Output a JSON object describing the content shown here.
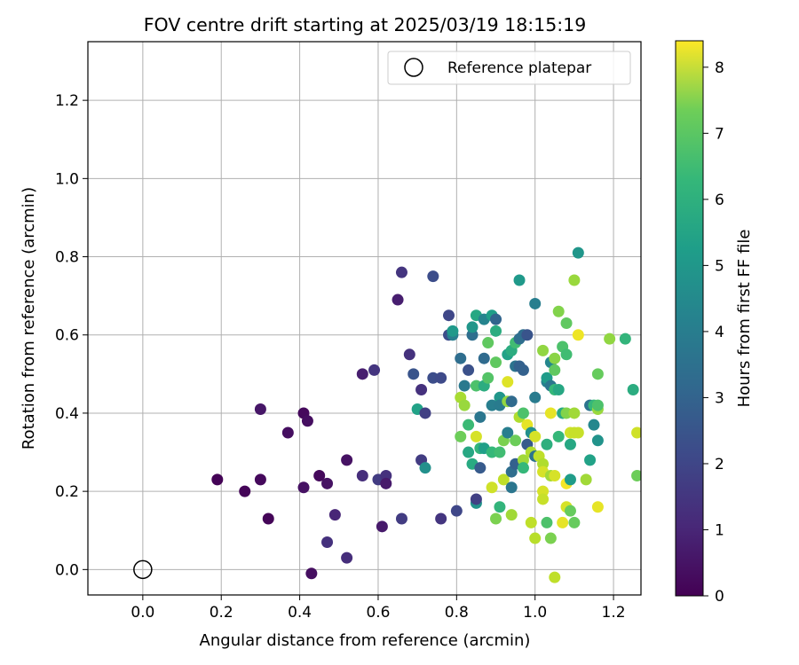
{
  "chart_data": {
    "type": "scatter",
    "title": "FOV centre drift starting at 2025/03/19 18:15:19",
    "xlabel": "Angular distance from reference (arcmin)",
    "ylabel": "Rotation from reference (arcmin)",
    "xlim": [
      -0.14,
      1.27
    ],
    "ylim": [
      -0.065,
      1.35
    ],
    "xticks": [
      "0.0",
      "0.2",
      "0.4",
      "0.6",
      "0.8",
      "1.0",
      "1.2"
    ],
    "xtick_values": [
      0.0,
      0.2,
      0.4,
      0.6,
      0.8,
      1.0,
      1.2
    ],
    "yticks": [
      "0.0",
      "0.2",
      "0.4",
      "0.6",
      "0.8",
      "1.0",
      "1.2"
    ],
    "ytick_values": [
      0.0,
      0.2,
      0.4,
      0.6,
      0.8,
      1.0,
      1.2
    ],
    "grid": true,
    "legend": {
      "position": "top-right",
      "entries": [
        "Reference platepar"
      ]
    },
    "reference_point": {
      "x": 0.0,
      "y": 0.0
    },
    "colorbar": {
      "label": "Hours from first FF file",
      "colormap": "viridis",
      "range": [
        0,
        8.4
      ],
      "ticks": [
        "0",
        "1",
        "2",
        "3",
        "4",
        "5",
        "6",
        "7",
        "8"
      ],
      "tick_values": [
        0,
        1,
        2,
        3,
        4,
        5,
        6,
        7,
        8
      ]
    },
    "points": [
      {
        "x": 0.19,
        "y": 0.23,
        "h": 0.05
      },
      {
        "x": 0.26,
        "y": 0.2,
        "h": 0.1
      },
      {
        "x": 0.3,
        "y": 0.23,
        "h": 0.2
      },
      {
        "x": 0.3,
        "y": 0.41,
        "h": 0.5
      },
      {
        "x": 0.32,
        "y": 0.13,
        "h": 0.1
      },
      {
        "x": 0.37,
        "y": 0.35,
        "h": 0.3
      },
      {
        "x": 0.41,
        "y": 0.4,
        "h": 0.2
      },
      {
        "x": 0.41,
        "y": 0.21,
        "h": 0.4
      },
      {
        "x": 0.42,
        "y": 0.38,
        "h": 0.3
      },
      {
        "x": 0.43,
        "y": -0.01,
        "h": 0.3
      },
      {
        "x": 0.45,
        "y": 0.24,
        "h": 0.2
      },
      {
        "x": 0.47,
        "y": 0.22,
        "h": 0.4
      },
      {
        "x": 0.47,
        "y": 0.07,
        "h": 1.2
      },
      {
        "x": 0.49,
        "y": 0.14,
        "h": 0.9
      },
      {
        "x": 0.52,
        "y": 0.28,
        "h": 0.4
      },
      {
        "x": 0.52,
        "y": 0.03,
        "h": 1.1
      },
      {
        "x": 0.56,
        "y": 0.5,
        "h": 0.7
      },
      {
        "x": 0.56,
        "y": 0.24,
        "h": 1.1
      },
      {
        "x": 0.59,
        "y": 0.51,
        "h": 1.3
      },
      {
        "x": 0.6,
        "y": 0.23,
        "h": 1.5
      },
      {
        "x": 0.61,
        "y": 0.11,
        "h": 0.6
      },
      {
        "x": 0.62,
        "y": 0.24,
        "h": 1.2
      },
      {
        "x": 0.62,
        "y": 0.22,
        "h": 0.6
      },
      {
        "x": 0.65,
        "y": 0.69,
        "h": 0.7
      },
      {
        "x": 0.66,
        "y": 0.76,
        "h": 1.3
      },
      {
        "x": 0.66,
        "y": 0.13,
        "h": 1.5
      },
      {
        "x": 0.68,
        "y": 0.55,
        "h": 1.2
      },
      {
        "x": 0.69,
        "y": 0.5,
        "h": 2.2
      },
      {
        "x": 0.71,
        "y": 0.46,
        "h": 1.2
      },
      {
        "x": 0.71,
        "y": 0.28,
        "h": 1.5
      },
      {
        "x": 0.7,
        "y": 0.41,
        "h": 4.8
      },
      {
        "x": 0.72,
        "y": 0.4,
        "h": 1.6
      },
      {
        "x": 0.72,
        "y": 0.26,
        "h": 4.2
      },
      {
        "x": 0.74,
        "y": 0.75,
        "h": 2.0
      },
      {
        "x": 0.74,
        "y": 0.49,
        "h": 2.0
      },
      {
        "x": 0.76,
        "y": 0.49,
        "h": 1.9
      },
      {
        "x": 0.76,
        "y": 0.13,
        "h": 1.3
      },
      {
        "x": 0.78,
        "y": 0.65,
        "h": 1.8
      },
      {
        "x": 0.78,
        "y": 0.6,
        "h": 2.0
      },
      {
        "x": 0.79,
        "y": 0.6,
        "h": 3.6
      },
      {
        "x": 0.79,
        "y": 0.61,
        "h": 4.5
      },
      {
        "x": 0.8,
        "y": 0.15,
        "h": 1.8
      },
      {
        "x": 0.81,
        "y": 0.44,
        "h": 7.3
      },
      {
        "x": 0.81,
        "y": 0.34,
        "h": 6.5
      },
      {
        "x": 0.81,
        "y": 0.54,
        "h": 3.0
      },
      {
        "x": 0.82,
        "y": 0.42,
        "h": 7.1
      },
      {
        "x": 0.82,
        "y": 0.47,
        "h": 3.4
      },
      {
        "x": 0.83,
        "y": 0.51,
        "h": 2.1
      },
      {
        "x": 0.83,
        "y": 0.37,
        "h": 5.7
      },
      {
        "x": 0.83,
        "y": 0.3,
        "h": 5.0
      },
      {
        "x": 0.84,
        "y": 0.6,
        "h": 3.0
      },
      {
        "x": 0.84,
        "y": 0.62,
        "h": 4.4
      },
      {
        "x": 0.84,
        "y": 0.27,
        "h": 5.1
      },
      {
        "x": 0.85,
        "y": 0.65,
        "h": 5.0
      },
      {
        "x": 0.85,
        "y": 0.47,
        "h": 6.0
      },
      {
        "x": 0.85,
        "y": 0.34,
        "h": 7.9
      },
      {
        "x": 0.85,
        "y": 0.17,
        "h": 4.3
      },
      {
        "x": 0.85,
        "y": 0.18,
        "h": 1.6
      },
      {
        "x": 0.86,
        "y": 0.26,
        "h": 2.4
      },
      {
        "x": 0.86,
        "y": 0.39,
        "h": 3.3
      },
      {
        "x": 0.86,
        "y": 0.31,
        "h": 5.5
      },
      {
        "x": 0.87,
        "y": 0.64,
        "h": 3.8
      },
      {
        "x": 0.87,
        "y": 0.54,
        "h": 2.9
      },
      {
        "x": 0.87,
        "y": 0.47,
        "h": 5.2
      },
      {
        "x": 0.87,
        "y": 0.31,
        "h": 4.7
      },
      {
        "x": 0.88,
        "y": 0.58,
        "h": 6.3
      },
      {
        "x": 0.88,
        "y": 0.49,
        "h": 6.1
      },
      {
        "x": 0.89,
        "y": 0.65,
        "h": 4.7
      },
      {
        "x": 0.89,
        "y": 0.42,
        "h": 3.6
      },
      {
        "x": 0.89,
        "y": 0.3,
        "h": 5.6
      },
      {
        "x": 0.89,
        "y": 0.21,
        "h": 7.8
      },
      {
        "x": 0.9,
        "y": 0.64,
        "h": 2.7
      },
      {
        "x": 0.9,
        "y": 0.61,
        "h": 5.2
      },
      {
        "x": 0.9,
        "y": 0.53,
        "h": 6.3
      },
      {
        "x": 0.9,
        "y": 0.13,
        "h": 6.7
      },
      {
        "x": 0.91,
        "y": 0.44,
        "h": 4.4
      },
      {
        "x": 0.91,
        "y": 0.42,
        "h": 3.5
      },
      {
        "x": 0.91,
        "y": 0.3,
        "h": 5.8
      },
      {
        "x": 0.91,
        "y": 0.16,
        "h": 5.5
      },
      {
        "x": 0.92,
        "y": 0.33,
        "h": 6.7
      },
      {
        "x": 0.92,
        "y": 0.23,
        "h": 7.6
      },
      {
        "x": 0.93,
        "y": 0.55,
        "h": 4.8
      },
      {
        "x": 0.93,
        "y": 0.43,
        "h": 7.0
      },
      {
        "x": 0.93,
        "y": 0.48,
        "h": 8.0
      },
      {
        "x": 0.93,
        "y": 0.35,
        "h": 3.6
      },
      {
        "x": 0.94,
        "y": 0.56,
        "h": 5.2
      },
      {
        "x": 0.94,
        "y": 0.43,
        "h": 2.9
      },
      {
        "x": 0.94,
        "y": 0.25,
        "h": 3.0
      },
      {
        "x": 0.94,
        "y": 0.21,
        "h": 3.3
      },
      {
        "x": 0.94,
        "y": 0.14,
        "h": 7.2
      },
      {
        "x": 0.95,
        "y": 0.58,
        "h": 5.8
      },
      {
        "x": 0.95,
        "y": 0.52,
        "h": 3.2
      },
      {
        "x": 0.95,
        "y": 0.33,
        "h": 6.5
      },
      {
        "x": 0.95,
        "y": 0.27,
        "h": 2.6
      },
      {
        "x": 0.96,
        "y": 0.52,
        "h": 2.6
      },
      {
        "x": 0.96,
        "y": 0.39,
        "h": 7.4
      },
      {
        "x": 0.96,
        "y": 0.59,
        "h": 3.0
      },
      {
        "x": 0.96,
        "y": 0.74,
        "h": 4.5
      },
      {
        "x": 0.97,
        "y": 0.6,
        "h": 3.0
      },
      {
        "x": 0.97,
        "y": 0.51,
        "h": 2.6
      },
      {
        "x": 0.97,
        "y": 0.4,
        "h": 6.0
      },
      {
        "x": 0.97,
        "y": 0.28,
        "h": 7.2
      },
      {
        "x": 0.97,
        "y": 0.26,
        "h": 5.6
      },
      {
        "x": 0.98,
        "y": 0.6,
        "h": 2.2
      },
      {
        "x": 0.98,
        "y": 0.37,
        "h": 8.1
      },
      {
        "x": 0.98,
        "y": 0.32,
        "h": 2.4
      },
      {
        "x": 0.99,
        "y": 0.35,
        "h": 4.2
      },
      {
        "x": 0.99,
        "y": 0.12,
        "h": 7.6
      },
      {
        "x": 0.99,
        "y": 0.3,
        "h": 7.4
      },
      {
        "x": 1.0,
        "y": 0.68,
        "h": 3.6
      },
      {
        "x": 1.0,
        "y": 0.44,
        "h": 3.5
      },
      {
        "x": 1.0,
        "y": 0.34,
        "h": 7.9
      },
      {
        "x": 1.0,
        "y": 0.29,
        "h": 3.2
      },
      {
        "x": 1.0,
        "y": 0.08,
        "h": 7.5
      },
      {
        "x": 1.01,
        "y": 0.29,
        "h": 7.6
      },
      {
        "x": 1.02,
        "y": 0.56,
        "h": 7.0
      },
      {
        "x": 1.02,
        "y": 0.27,
        "h": 7.4
      },
      {
        "x": 1.02,
        "y": 0.25,
        "h": 7.9
      },
      {
        "x": 1.02,
        "y": 0.2,
        "h": 7.9
      },
      {
        "x": 1.02,
        "y": 0.18,
        "h": 7.7
      },
      {
        "x": 1.03,
        "y": 0.48,
        "h": 3.7
      },
      {
        "x": 1.03,
        "y": 0.49,
        "h": 4.6
      },
      {
        "x": 1.03,
        "y": 0.32,
        "h": 5.3
      },
      {
        "x": 1.03,
        "y": 0.12,
        "h": 6.0
      },
      {
        "x": 1.04,
        "y": 0.53,
        "h": 3.9
      },
      {
        "x": 1.04,
        "y": 0.47,
        "h": 3.3
      },
      {
        "x": 1.04,
        "y": 0.4,
        "h": 8.1
      },
      {
        "x": 1.04,
        "y": 0.24,
        "h": 7.2
      },
      {
        "x": 1.04,
        "y": 0.08,
        "h": 6.7
      },
      {
        "x": 1.05,
        "y": 0.54,
        "h": 6.9
      },
      {
        "x": 1.05,
        "y": 0.51,
        "h": 6.3
      },
      {
        "x": 1.05,
        "y": 0.46,
        "h": 5.6
      },
      {
        "x": 1.05,
        "y": 0.24,
        "h": 7.9
      },
      {
        "x": 1.05,
        "y": -0.02,
        "h": 7.6
      },
      {
        "x": 1.06,
        "y": 0.66,
        "h": 6.8
      },
      {
        "x": 1.06,
        "y": 0.46,
        "h": 5.0
      },
      {
        "x": 1.06,
        "y": 0.34,
        "h": 5.6
      },
      {
        "x": 1.07,
        "y": 0.57,
        "h": 6.0
      },
      {
        "x": 1.07,
        "y": 0.4,
        "h": 5.1
      },
      {
        "x": 1.07,
        "y": 0.12,
        "h": 8.1
      },
      {
        "x": 1.08,
        "y": 0.55,
        "h": 5.8
      },
      {
        "x": 1.08,
        "y": 0.63,
        "h": 6.3
      },
      {
        "x": 1.08,
        "y": 0.4,
        "h": 6.8
      },
      {
        "x": 1.08,
        "y": 0.22,
        "h": 8.3
      },
      {
        "x": 1.08,
        "y": 0.16,
        "h": 7.9
      },
      {
        "x": 1.09,
        "y": 0.35,
        "h": 7.8
      },
      {
        "x": 1.09,
        "y": 0.32,
        "h": 5.0
      },
      {
        "x": 1.09,
        "y": 0.23,
        "h": 4.6
      },
      {
        "x": 1.09,
        "y": 0.15,
        "h": 6.4
      },
      {
        "x": 1.1,
        "y": 0.74,
        "h": 7.1
      },
      {
        "x": 1.1,
        "y": 0.4,
        "h": 7.2
      },
      {
        "x": 1.1,
        "y": 0.35,
        "h": 7.7
      },
      {
        "x": 1.1,
        "y": 0.12,
        "h": 6.4
      },
      {
        "x": 1.11,
        "y": 0.81,
        "h": 4.4
      },
      {
        "x": 1.11,
        "y": 0.6,
        "h": 8.2
      },
      {
        "x": 1.11,
        "y": 0.35,
        "h": 7.7
      },
      {
        "x": 1.13,
        "y": 0.23,
        "h": 7.2
      },
      {
        "x": 1.14,
        "y": 0.42,
        "h": 3.2
      },
      {
        "x": 1.14,
        "y": 0.28,
        "h": 4.8
      },
      {
        "x": 1.15,
        "y": 0.42,
        "h": 5.6
      },
      {
        "x": 1.15,
        "y": 0.37,
        "h": 3.9
      },
      {
        "x": 1.16,
        "y": 0.5,
        "h": 6.4
      },
      {
        "x": 1.16,
        "y": 0.41,
        "h": 7.1
      },
      {
        "x": 1.16,
        "y": 0.33,
        "h": 4.3
      },
      {
        "x": 1.16,
        "y": 0.42,
        "h": 6.0
      },
      {
        "x": 1.16,
        "y": 0.16,
        "h": 8.1
      },
      {
        "x": 1.19,
        "y": 0.59,
        "h": 7.0
      },
      {
        "x": 1.23,
        "y": 0.59,
        "h": 5.5
      },
      {
        "x": 1.25,
        "y": 0.46,
        "h": 5.2
      },
      {
        "x": 1.26,
        "y": 0.35,
        "h": 7.8
      },
      {
        "x": 1.26,
        "y": 0.24,
        "h": 6.5
      }
    ]
  }
}
